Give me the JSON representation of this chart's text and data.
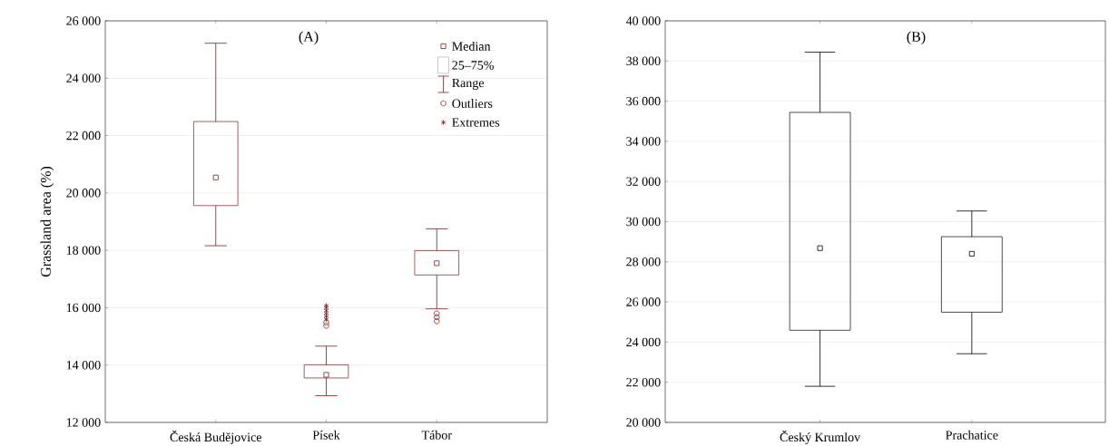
{
  "chart_data": [
    {
      "type": "box",
      "title": "(A)",
      "ylabel": "Grassland area (%)",
      "categories": [
        "Česká Budějovice",
        "Písek",
        "Tábor"
      ],
      "ylim": [
        12000,
        26000
      ],
      "yticks": [
        {
          "value": 12000,
          "label": "12 000"
        },
        {
          "value": 14000,
          "label": "14 000"
        },
        {
          "value": 16000,
          "label": "16 000"
        },
        {
          "value": 18000,
          "label": "18 000"
        },
        {
          "value": 20000,
          "label": "20 000"
        },
        {
          "value": 22000,
          "label": "22 000"
        },
        {
          "value": 24000,
          "label": "24 000"
        },
        {
          "value": 26000,
          "label": "26 000"
        }
      ],
      "grid": "y",
      "legend": "top right",
      "annotations": [
        "Median",
        "25–75%",
        "Range"
      ],
      "series": [
        {
          "color": "#7b1e1e",
          "boxes": [
            {
              "low": 18160,
              "q1": 19560,
              "median": 20540,
              "q3": 22490,
              "high": 25220
            },
            {
              "low": 12930,
              "q1": 13550,
              "median": 13660,
              "q3": 14010,
              "high": 14660
            },
            {
              "low": 15960,
              "q1": 17140,
              "median": 17550,
              "q3": 17990,
              "high": 18750
            }
          ]
        },
        {
          "type": "scatter",
          "name": "Outliers",
          "marker": "circle",
          "color": "#7b1e1e",
          "x": [
            "Písek",
            "Písek",
            "Tábor",
            "Tábor",
            "Tábor"
          ],
          "values": [
            15370,
            15480,
            15800,
            15670,
            15530
          ]
        },
        {
          "type": "scatter",
          "name": "Extremes",
          "marker": "cross",
          "color": "#7b1e1e",
          "x": [
            "Písek",
            "Písek",
            "Písek",
            "Písek",
            "Písek",
            "Písek"
          ],
          "values": [
            15600,
            15700,
            15800,
            15900,
            16000,
            16070
          ]
        }
      ]
    },
    {
      "type": "box",
      "title": "(B)",
      "categories": [
        "Český Krumlov",
        "Prachatice"
      ],
      "ylim": [
        20000,
        40000
      ],
      "yticks": [
        {
          "value": 20000,
          "label": "20 000"
        },
        {
          "value": 22000,
          "label": "22 000"
        },
        {
          "value": 24000,
          "label": "24 000"
        },
        {
          "value": 26000,
          "label": "26 000"
        },
        {
          "value": 28000,
          "label": "28 000"
        },
        {
          "value": 30000,
          "label": "30 000"
        },
        {
          "value": 32000,
          "label": "32 000"
        },
        {
          "value": 34000,
          "label": "34 000"
        },
        {
          "value": 36000,
          "label": "36 000"
        },
        {
          "value": 38000,
          "label": "38 000"
        },
        {
          "value": 40000,
          "label": "40 000"
        }
      ],
      "grid": "y",
      "series": [
        {
          "color": "#000000",
          "boxes": [
            {
              "low": 21800,
              "q1": 24590,
              "median": 28680,
              "q3": 35440,
              "high": 38440
            },
            {
              "low": 23420,
              "q1": 25490,
              "median": 28400,
              "q3": 29250,
              "high": 30530
            }
          ]
        }
      ]
    }
  ]
}
